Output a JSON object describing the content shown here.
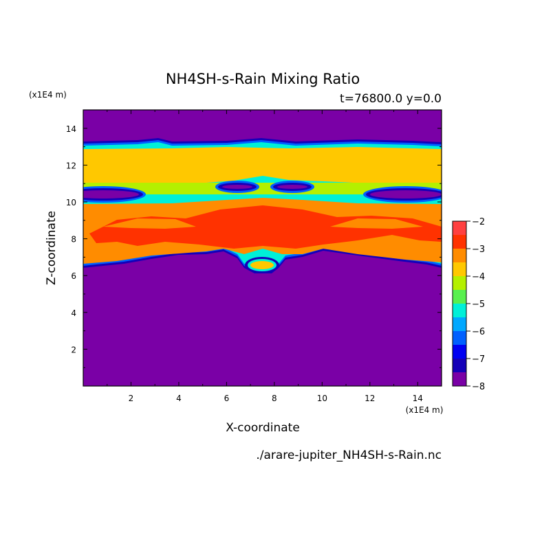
{
  "chart_data": {
    "type": "heatmap",
    "title": "NH4SH-s-Rain Mixing Ratio",
    "subtitle": "t=76800.0 y=0.0",
    "xlabel": "X-coordinate",
    "ylabel": "Z-coordinate",
    "x_unit": "(x1E4 m)",
    "y_unit": "(x1E4 m)",
    "xlim": [
      0.0,
      15.0
    ],
    "ylim": [
      0.0,
      15.0
    ],
    "x_ticks": [
      2,
      4,
      6,
      8,
      10,
      12,
      14
    ],
    "y_ticks": [
      2,
      4,
      6,
      8,
      10,
      12,
      14
    ],
    "source_file": "./arare-jupiter_NH4SH-s-Rain.nc",
    "colorbar": {
      "min": -8,
      "max": -2,
      "ticks": [
        -2,
        -3,
        -4,
        -5,
        -6,
        -7,
        -8
      ],
      "levels": [
        {
          "lo": -8.0,
          "hi": -7.5,
          "color": "#7a00a6"
        },
        {
          "lo": -7.5,
          "hi": -7.0,
          "color": "#1400b8"
        },
        {
          "lo": -7.0,
          "hi": -6.5,
          "color": "#0000f2"
        },
        {
          "lo": -6.5,
          "hi": -6.0,
          "color": "#0060ff"
        },
        {
          "lo": -6.0,
          "hi": -5.5,
          "color": "#00a8ff"
        },
        {
          "lo": -5.5,
          "hi": -5.0,
          "color": "#00f0d8"
        },
        {
          "lo": -5.0,
          "hi": -4.5,
          "color": "#58f04e"
        },
        {
          "lo": -4.5,
          "hi": -4.0,
          "color": "#b4f000"
        },
        {
          "lo": -4.0,
          "hi": -3.5,
          "color": "#ffc800"
        },
        {
          "lo": -3.5,
          "hi": -3.0,
          "color": "#ff8c00"
        },
        {
          "lo": -3.0,
          "hi": -2.5,
          "color": "#ff3200"
        },
        {
          "lo": -2.5,
          "hi": -2.0,
          "color": "#ff4040"
        },
        {
          "lo": -2.0,
          "hi": -1.5,
          "color": "#ffb0b0"
        }
      ]
    },
    "regions": [
      {
        "value": -8,
        "color": "#7a00a6",
        "x": [
          0.0,
          15.0
        ],
        "z": [
          0.0,
          15.0
        ]
      },
      {
        "value": -7,
        "color": "#1400b8",
        "x": [
          0.0,
          15.0
        ],
        "z": [
          6.3,
          13.2
        ]
      },
      {
        "value": -6,
        "color": "#0060ff",
        "x": [
          0.0,
          15.0
        ],
        "z": [
          6.5,
          13.1
        ]
      },
      {
        "value": -5,
        "color": "#00f0d8",
        "x": [
          0.0,
          15.0
        ],
        "z": [
          6.6,
          13.0
        ]
      },
      {
        "value": -4,
        "color": "#ffc800",
        "x": [
          0.0,
          15.0
        ],
        "z": [
          10.6,
          12.9
        ]
      },
      {
        "value": -3.5,
        "color": "#ff8c00",
        "x": [
          0.0,
          15.0
        ],
        "z": [
          6.8,
          10.3
        ]
      },
      {
        "value": -2.8,
        "color": "#ff3200",
        "x": [
          0.5,
          14.5
        ],
        "z": [
          7.5,
          9.8
        ]
      },
      {
        "value": -2.0,
        "color": "#ffb0b0",
        "x": [
          2.0,
          13.0
        ],
        "z": [
          8.6,
          9.2
        ]
      }
    ]
  }
}
